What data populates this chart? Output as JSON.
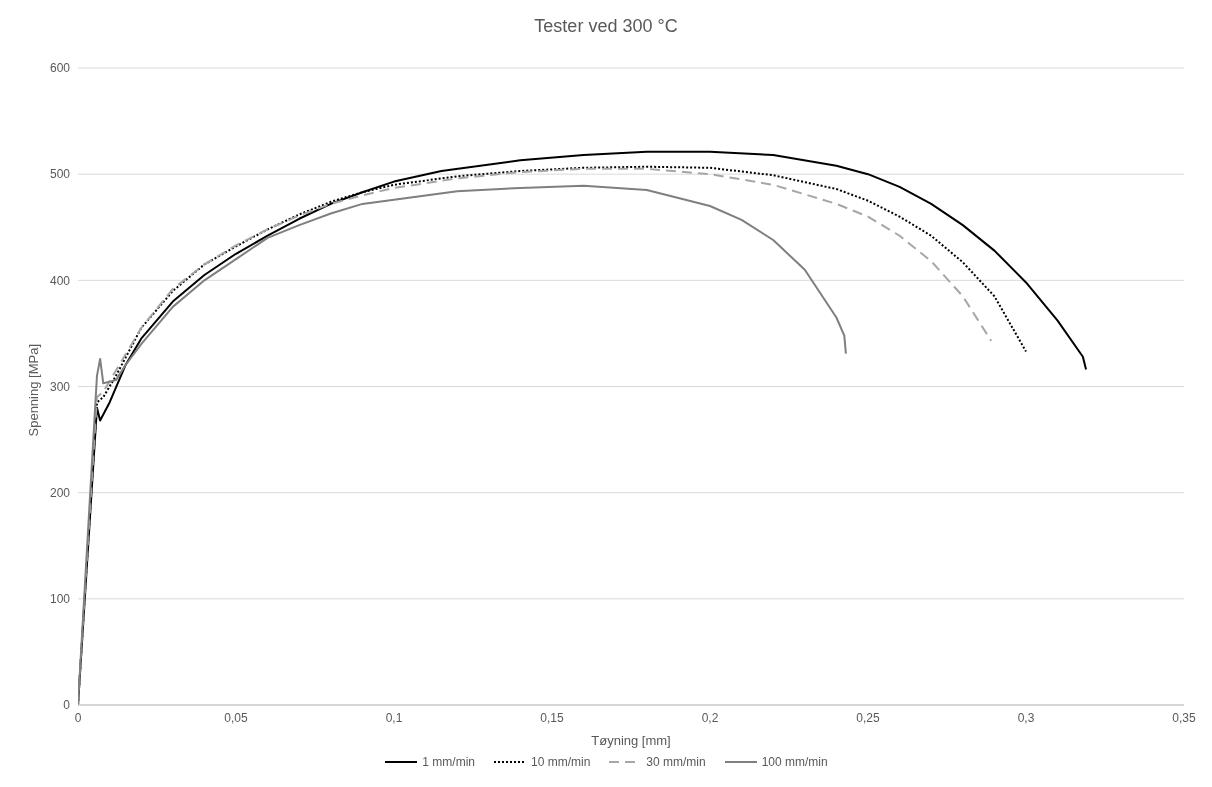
{
  "chart_data": {
    "type": "line",
    "title": "Tester ved 300 °C",
    "xlabel": "Tøyning [mm]",
    "ylabel": "Spenning [MPa]",
    "xlim": [
      0,
      0.35
    ],
    "xticks": [
      0,
      {
        "value": 0.05,
        "label": "0,05"
      },
      {
        "value": 0.1,
        "label": "0,1"
      },
      {
        "value": 0.15,
        "label": "0,15"
      },
      {
        "value": 0.2,
        "label": "0,2"
      },
      {
        "value": 0.25,
        "label": "0,25"
      },
      {
        "value": 0.3,
        "label": "0,3"
      },
      {
        "value": 0.35,
        "label": "0,35"
      }
    ],
    "ylim": [
      0,
      600
    ],
    "yticks": [
      0,
      100,
      200,
      300,
      400,
      500,
      600
    ],
    "grid": "y",
    "legend": "bottom",
    "marker": "none",
    "series": [
      {
        "name": "1 mm/min",
        "color": "#000000",
        "line_style": "solid",
        "x": [
          0,
          0.006,
          0.007,
          0.01,
          0.015,
          0.02,
          0.03,
          0.04,
          0.05,
          0.06,
          0.07,
          0.08,
          0.09,
          0.1,
          0.115,
          0.14,
          0.16,
          0.18,
          0.2,
          0.22,
          0.24,
          0.25,
          0.26,
          0.27,
          0.28,
          0.29,
          0.3,
          0.31,
          0.318,
          0.319
        ],
        "values": [
          0,
          280,
          268,
          285,
          320,
          345,
          380,
          405,
          425,
          442,
          458,
          472,
          483,
          493,
          503,
          513,
          518,
          521,
          521,
          518,
          508,
          500,
          488,
          472,
          452,
          428,
          398,
          362,
          328,
          316
        ]
      },
      {
        "name": "10 mm/min",
        "color": "#000000",
        "line_style": "dotted",
        "x": [
          0,
          0.006,
          0.008,
          0.012,
          0.02,
          0.03,
          0.04,
          0.05,
          0.06,
          0.07,
          0.08,
          0.09,
          0.1,
          0.12,
          0.14,
          0.16,
          0.18,
          0.2,
          0.22,
          0.24,
          0.25,
          0.26,
          0.27,
          0.28,
          0.29,
          0.3
        ],
        "values": [
          0,
          285,
          290,
          310,
          355,
          390,
          415,
          432,
          448,
          462,
          474,
          483,
          490,
          498,
          503,
          506,
          507,
          506,
          499,
          486,
          475,
          460,
          442,
          417,
          385,
          333
        ]
      },
      {
        "name": "30 mm/min",
        "color": "#a6a6a6",
        "line_style": "dashed",
        "x": [
          0,
          0.006,
          0.008,
          0.012,
          0.02,
          0.03,
          0.04,
          0.05,
          0.06,
          0.07,
          0.08,
          0.09,
          0.1,
          0.12,
          0.14,
          0.16,
          0.18,
          0.2,
          0.22,
          0.24,
          0.25,
          0.26,
          0.27,
          0.28,
          0.289
        ],
        "values": [
          0,
          290,
          295,
          315,
          355,
          392,
          415,
          433,
          448,
          461,
          472,
          480,
          487,
          496,
          502,
          505,
          505,
          500,
          490,
          472,
          460,
          442,
          418,
          385,
          343
        ]
      },
      {
        "name": "100 mm/min",
        "color": "#7f7f7f",
        "line_style": "solid",
        "x": [
          0,
          0.006,
          0.007,
          0.008,
          0.012,
          0.015,
          0.02,
          0.03,
          0.04,
          0.05,
          0.06,
          0.07,
          0.08,
          0.09,
          0.1,
          0.12,
          0.14,
          0.16,
          0.18,
          0.2,
          0.21,
          0.22,
          0.23,
          0.24,
          0.2425,
          0.243
        ],
        "values": [
          0,
          310,
          326,
          303,
          306,
          320,
          340,
          375,
          400,
          420,
          440,
          452,
          463,
          472,
          476,
          484,
          487,
          489,
          485,
          470,
          457,
          438,
          410,
          365,
          348,
          331
        ]
      }
    ]
  }
}
